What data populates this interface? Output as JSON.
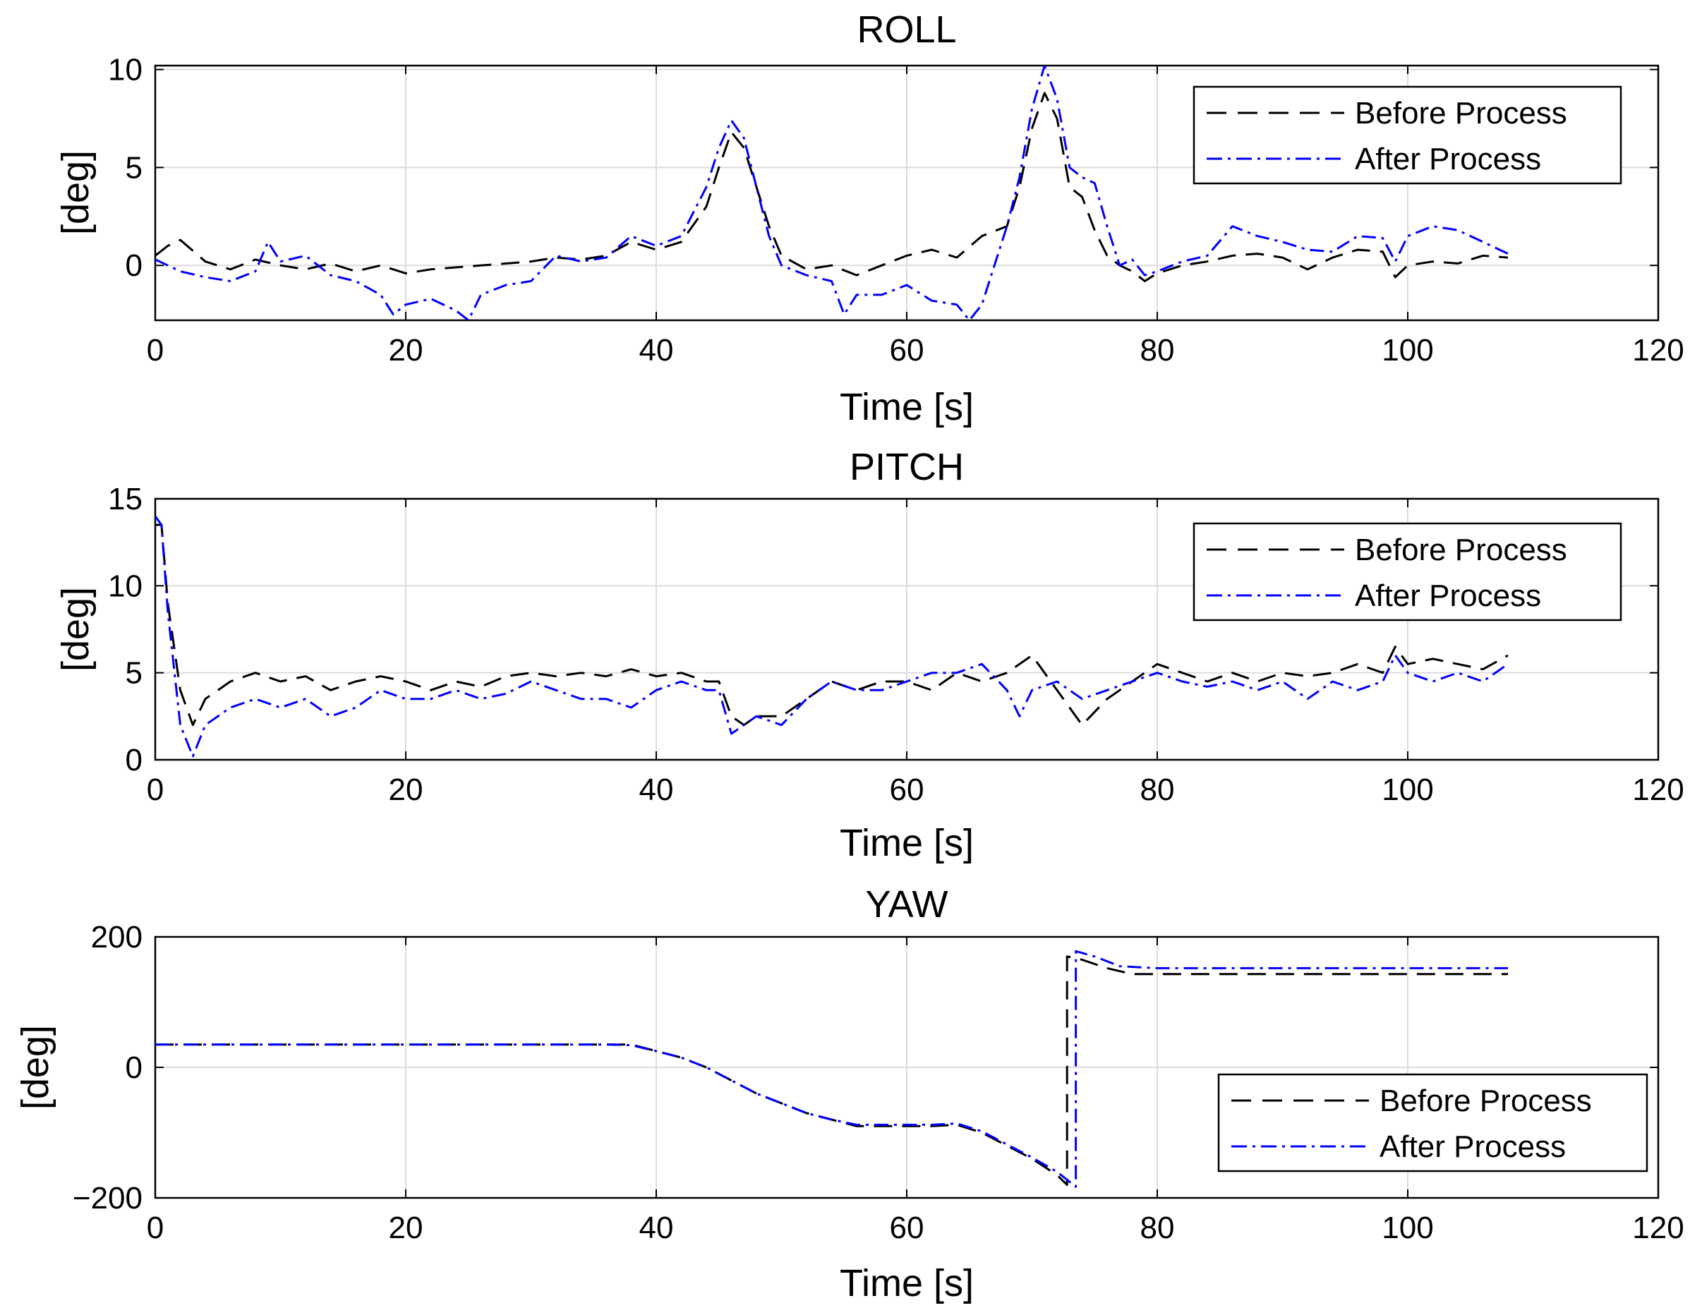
{
  "chart_data": [
    {
      "type": "line",
      "title": "ROLL",
      "xlabel": "Time [s]",
      "ylabel": "[deg]",
      "xlim": [
        0,
        120
      ],
      "ylim": [
        -2.8,
        10.2
      ],
      "xticks": [
        0,
        20,
        40,
        60,
        80,
        100,
        120
      ],
      "yticks": [
        0,
        5,
        10
      ],
      "grid": true,
      "legend_position": "top-right",
      "series": [
        {
          "name": "Before Process",
          "color": "#000000",
          "style": "dashed",
          "x": [
            0,
            1,
            2,
            4,
            6,
            8,
            10,
            12,
            14,
            16,
            18,
            20,
            22,
            24,
            26,
            28,
            30,
            32,
            34,
            36,
            38,
            40,
            42,
            44,
            45,
            46,
            47,
            48,
            49,
            50,
            52,
            54,
            56,
            58,
            60,
            62,
            64,
            66,
            68,
            69,
            70,
            71,
            72,
            73,
            74,
            75,
            76,
            77,
            78,
            79,
            80,
            82,
            84,
            86,
            88,
            90,
            92,
            94,
            96,
            98,
            99,
            100,
            102,
            104,
            106,
            108
          ],
          "values": [
            0.5,
            1.0,
            1.3,
            0.2,
            -0.2,
            0.3,
            0.0,
            -0.2,
            0.1,
            -0.3,
            0.0,
            -0.4,
            -0.2,
            -0.1,
            0.0,
            0.1,
            0.2,
            0.4,
            0.3,
            0.5,
            1.2,
            0.8,
            1.2,
            3.0,
            5.0,
            6.8,
            6.0,
            4.0,
            2.0,
            0.5,
            -0.2,
            0.0,
            -0.5,
            0.0,
            0.5,
            0.8,
            0.4,
            1.5,
            2.0,
            4.0,
            7.0,
            8.8,
            7.5,
            4.0,
            3.5,
            1.8,
            0.5,
            0.0,
            -0.3,
            -0.8,
            -0.4,
            0.0,
            0.2,
            0.5,
            0.6,
            0.4,
            -0.2,
            0.4,
            0.8,
            0.7,
            -0.6,
            0.0,
            0.2,
            0.1,
            0.5,
            0.4
          ]
        },
        {
          "name": "After Process",
          "color": "#0000ff",
          "style": "dashdot",
          "x": [
            0,
            1,
            2,
            4,
            6,
            8,
            9,
            10,
            12,
            14,
            16,
            18,
            19,
            20,
            22,
            24,
            25,
            26,
            28,
            30,
            32,
            34,
            36,
            38,
            40,
            42,
            44,
            45,
            46,
            47,
            48,
            49,
            50,
            52,
            54,
            55,
            56,
            58,
            60,
            62,
            64,
            65,
            66,
            68,
            69,
            70,
            71,
            72,
            73,
            74,
            75,
            76,
            77,
            78,
            79,
            80,
            82,
            84,
            86,
            88,
            90,
            92,
            94,
            96,
            98,
            99,
            100,
            102,
            104,
            106,
            108
          ],
          "values": [
            0.3,
            0.0,
            -0.3,
            -0.6,
            -0.8,
            -0.3,
            1.2,
            0.2,
            0.5,
            -0.5,
            -0.8,
            -1.5,
            -2.5,
            -2.0,
            -1.7,
            -2.3,
            -2.8,
            -1.5,
            -1.0,
            -0.8,
            0.5,
            0.2,
            0.4,
            1.5,
            1.0,
            1.5,
            4.0,
            6.0,
            7.4,
            6.5,
            4.0,
            1.5,
            0.0,
            -0.5,
            -0.8,
            -2.5,
            -1.5,
            -1.5,
            -1.0,
            -1.8,
            -2.0,
            -2.8,
            -2.0,
            2.0,
            4.5,
            8.0,
            10.2,
            8.5,
            5.0,
            4.5,
            4.2,
            2.0,
            0.0,
            0.3,
            -0.5,
            -0.3,
            0.2,
            0.5,
            2.0,
            1.5,
            1.2,
            0.8,
            0.7,
            1.5,
            1.4,
            0.2,
            1.5,
            2.0,
            1.8,
            1.2,
            0.6
          ]
        }
      ]
    },
    {
      "type": "line",
      "title": "PITCH",
      "xlabel": "Time [s]",
      "ylabel": "[deg]",
      "xlim": [
        0,
        120
      ],
      "ylim": [
        0,
        15
      ],
      "xticks": [
        0,
        20,
        40,
        60,
        80,
        100,
        120
      ],
      "yticks": [
        0,
        5,
        10,
        15
      ],
      "grid": true,
      "legend_position": "top-right",
      "series": [
        {
          "name": "Before Process",
          "color": "#000000",
          "style": "dashed",
          "x": [
            0,
            0.5,
            1,
            2,
            3,
            4,
            6,
            8,
            10,
            12,
            14,
            16,
            18,
            20,
            22,
            24,
            26,
            28,
            30,
            32,
            34,
            36,
            38,
            40,
            42,
            44,
            45,
            46,
            47,
            48,
            50,
            52,
            54,
            56,
            58,
            60,
            62,
            64,
            66,
            68,
            70,
            72,
            74,
            76,
            78,
            80,
            82,
            84,
            86,
            88,
            90,
            92,
            94,
            96,
            98,
            99,
            100,
            102,
            104,
            106,
            108
          ],
          "values": [
            13.5,
            13.5,
            9.0,
            4.0,
            2.0,
            3.5,
            4.5,
            5.0,
            4.5,
            4.8,
            4.0,
            4.5,
            4.8,
            4.5,
            4.0,
            4.5,
            4.2,
            4.8,
            5.0,
            4.8,
            5.0,
            4.8,
            5.2,
            4.8,
            5.0,
            4.5,
            4.5,
            2.5,
            2.0,
            2.5,
            2.5,
            3.5,
            4.5,
            4.0,
            4.5,
            4.5,
            4.0,
            5.0,
            4.5,
            5.0,
            6.0,
            4.0,
            2.0,
            3.5,
            4.5,
            5.5,
            5.0,
            4.5,
            5.0,
            4.5,
            5.0,
            4.8,
            5.0,
            5.5,
            5.0,
            6.5,
            5.5,
            5.8,
            5.5,
            5.2,
            6.0
          ]
        },
        {
          "name": "After Process",
          "color": "#0000ff",
          "style": "dashdot",
          "x": [
            0,
            0.5,
            1,
            2,
            3,
            4,
            6,
            8,
            10,
            12,
            14,
            16,
            18,
            20,
            22,
            24,
            26,
            28,
            30,
            32,
            34,
            36,
            38,
            40,
            42,
            44,
            45,
            46,
            47,
            48,
            50,
            52,
            54,
            56,
            58,
            60,
            62,
            64,
            66,
            68,
            69,
            70,
            72,
            74,
            76,
            78,
            80,
            82,
            84,
            86,
            88,
            90,
            92,
            94,
            96,
            98,
            99,
            100,
            102,
            104,
            106,
            108
          ],
          "values": [
            14.0,
            13.5,
            8.5,
            2.0,
            0.2,
            2.0,
            3.0,
            3.5,
            3.0,
            3.5,
            2.5,
            3.0,
            4.0,
            3.5,
            3.5,
            4.0,
            3.5,
            3.8,
            4.5,
            4.0,
            3.5,
            3.5,
            3.0,
            4.0,
            4.5,
            4.0,
            4.0,
            1.5,
            2.0,
            2.5,
            2.0,
            3.5,
            4.5,
            4.0,
            4.0,
            4.5,
            5.0,
            5.0,
            5.5,
            4.0,
            2.5,
            4.0,
            4.5,
            3.5,
            4.0,
            4.5,
            5.0,
            4.5,
            4.2,
            4.5,
            4.0,
            4.5,
            3.5,
            4.5,
            4.0,
            4.5,
            6.0,
            5.0,
            4.5,
            5.0,
            4.5,
            5.5
          ]
        }
      ]
    },
    {
      "type": "line",
      "title": "YAW",
      "xlabel": "Time [s]",
      "ylabel": "[deg]",
      "xlim": [
        0,
        120
      ],
      "ylim": [
        -200,
        200
      ],
      "xticks": [
        0,
        20,
        40,
        60,
        80,
        100,
        120
      ],
      "yticks": [
        -200,
        0,
        200
      ],
      "grid": true,
      "legend_position": "bottom-right",
      "series": [
        {
          "name": "Before Process",
          "color": "#000000",
          "style": "dashed",
          "x": [
            0,
            10,
            20,
            30,
            36,
            38,
            40,
            42,
            44,
            46,
            48,
            50,
            52,
            54,
            56,
            58,
            60,
            62,
            64,
            66,
            68,
            70,
            72,
            72.8,
            72.8,
            74,
            76,
            78,
            80,
            90,
            100,
            108
          ],
          "values": [
            35,
            35,
            35,
            35,
            35,
            35,
            25,
            15,
            0,
            -20,
            -40,
            -55,
            -70,
            -80,
            -90,
            -90,
            -90,
            -90,
            -88,
            -100,
            -120,
            -140,
            -165,
            -180,
            170,
            165,
            152,
            143,
            143,
            143,
            143,
            143
          ]
        },
        {
          "name": "After Process",
          "color": "#0000ff",
          "style": "dashdot",
          "x": [
            0,
            10,
            20,
            30,
            36,
            38,
            40,
            42,
            44,
            46,
            48,
            50,
            52,
            54,
            56,
            58,
            60,
            62,
            64,
            66,
            68,
            70,
            72,
            73.5,
            73.5,
            75,
            77,
            80,
            90,
            100,
            108
          ],
          "values": [
            35,
            35,
            35,
            35,
            35,
            34,
            25,
            15,
            0,
            -20,
            -40,
            -55,
            -70,
            -80,
            -88,
            -88,
            -88,
            -88,
            -86,
            -98,
            -118,
            -138,
            -160,
            -183,
            178,
            170,
            155,
            152,
            152,
            152,
            152
          ]
        }
      ]
    }
  ]
}
